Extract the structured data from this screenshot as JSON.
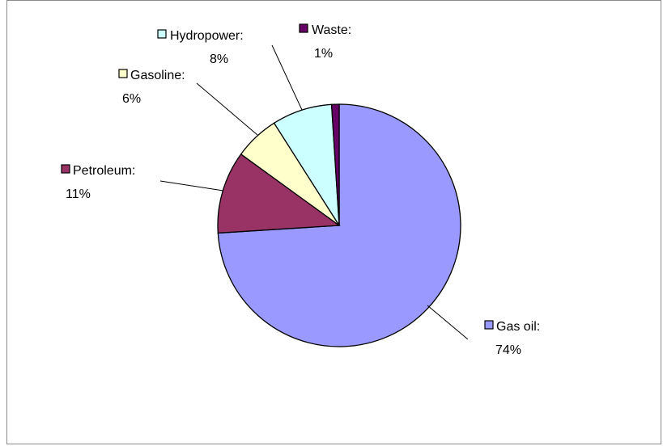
{
  "chart_data": {
    "type": "pie",
    "title": "",
    "slices": [
      {
        "name": "Gas oil",
        "value": 74,
        "label": "Gas oil:",
        "percent": "74%",
        "color": "#9999ff"
      },
      {
        "name": "Petroleum",
        "value": 11,
        "label": "Petroleum:",
        "percent": "11%",
        "color": "#993366"
      },
      {
        "name": "Gasoline",
        "value": 6,
        "label": "Gasoline:",
        "percent": "6%",
        "color": "#ffffcc"
      },
      {
        "name": "Hydropower",
        "value": 8,
        "label": "Hydropower:",
        "percent": "8%",
        "color": "#ccffff"
      },
      {
        "name": "Waste",
        "value": 1,
        "label": "Waste:",
        "percent": "1%",
        "color": "#660066"
      }
    ],
    "start_angle_deg": 0,
    "direction": "clockwise",
    "legend": "none",
    "data_labels": "outside with leader lines"
  }
}
